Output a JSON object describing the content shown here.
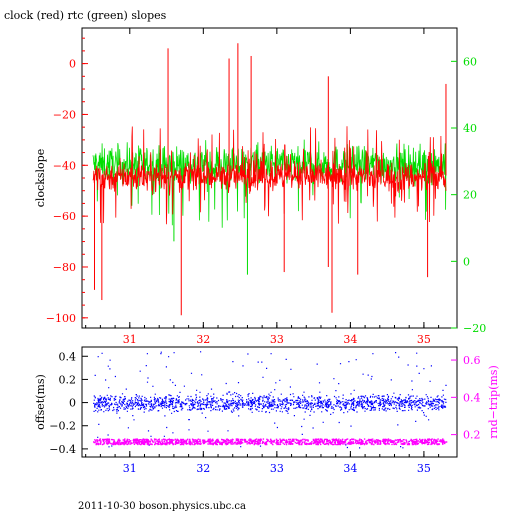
{
  "title": "clock (red) rtc (green) slopes",
  "footer": "2011-10-30  boson.physics.ubc.ca",
  "colors": {
    "red": "#ff0000",
    "green": "#00dd00",
    "blue": "#0000ff",
    "magenta": "#ff00ff",
    "axis": "#000000"
  },
  "chart_data": [
    {
      "type": "line",
      "title": "clock (red) rtc (green) slopes",
      "ylabel": "clockslope",
      "x_ticks": [
        "31",
        "32",
        "33",
        "34",
        "35"
      ],
      "xlim": [
        30.35,
        35.45
      ],
      "ylim_left": [
        -104,
        14
      ],
      "ylim_right": [
        -20,
        70
      ],
      "y_ticks_left": [
        "0",
        "−20",
        "−40",
        "−60",
        "−80",
        "−100"
      ],
      "y_ticks_right": [
        "60",
        "40",
        "20",
        "0",
        "−20"
      ],
      "series": [
        {
          "color": "red",
          "axis": "left",
          "typical_band": [
            -50,
            -39
          ],
          "spikes_low": [
            [
              30.52,
              -89
            ],
            [
              30.62,
              -93
            ],
            [
              31.7,
              -99
            ],
            [
              33.75,
              -98
            ],
            [
              33.1,
              -82
            ],
            [
              33.7,
              -80
            ],
            [
              34.1,
              -83
            ],
            [
              35.05,
              -84
            ]
          ],
          "spikes_high": [
            [
              31.52,
              6
            ],
            [
              32.47,
              8
            ],
            [
              32.35,
              2
            ],
            [
              32.65,
              3
            ],
            [
              33.7,
              -5
            ],
            [
              35.3,
              -8
            ]
          ]
        },
        {
          "color": "green",
          "axis": "right",
          "typical_band": [
            23,
            35
          ],
          "spikes_low": [
            [
              32.6,
              -4
            ],
            [
              33.75,
              -9
            ],
            [
              31.6,
              6
            ]
          ]
        }
      ]
    },
    {
      "type": "scatter",
      "ylabel": "offset(ms)",
      "ylabel_right": "rnd−trip(ms)",
      "x_ticks": [
        "31",
        "32",
        "33",
        "34",
        "35"
      ],
      "xlim": [
        30.35,
        35.45
      ],
      "ylim_left": [
        -0.47,
        0.48
      ],
      "ylim_right": [
        0.08,
        0.67
      ],
      "y_ticks_left": [
        "0.4",
        "0.2",
        "0",
        "−0.2",
        "−0.4"
      ],
      "y_ticks_right": [
        "0.6",
        "0.4",
        "0.2"
      ],
      "series": [
        {
          "color": "blue",
          "axis": "left",
          "typical_band": [
            -0.15,
            0.15
          ],
          "range": [
            -0.4,
            0.45
          ]
        },
        {
          "color": "magenta",
          "axis": "right",
          "typical_band": [
            0.15,
            0.18
          ]
        }
      ]
    }
  ]
}
